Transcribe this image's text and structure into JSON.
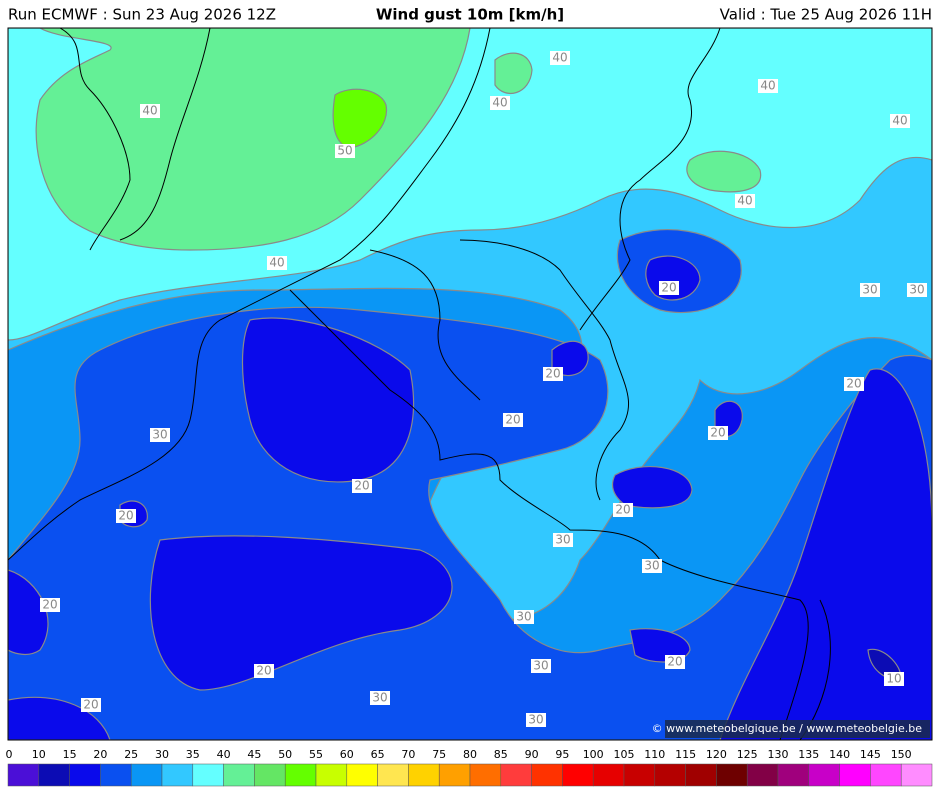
{
  "header": {
    "run": "Run ECMWF : Sun 23 Aug 2026 12Z",
    "title": "Wind gust 10m [km/h]",
    "valid": "Valid : Tue 25 Aug 2026 11H"
  },
  "map": {
    "contour_labels": [
      40,
      50,
      40,
      40,
      40,
      40,
      40,
      40,
      20,
      30,
      30,
      20,
      20,
      30,
      20,
      20,
      20,
      20,
      20,
      30,
      30,
      20,
      30,
      20,
      30,
      20,
      10,
      30,
      20,
      30
    ],
    "credit": "© www.meteobelgique.be / www.meteobelgie.be"
  },
  "colorbar": {
    "ticks": [
      0,
      10,
      15,
      20,
      25,
      30,
      35,
      40,
      45,
      50,
      55,
      60,
      65,
      70,
      75,
      80,
      85,
      90,
      95,
      100,
      105,
      110,
      115,
      120,
      125,
      130,
      135,
      140,
      145,
      150
    ],
    "colors": [
      "#4b0fd7",
      "#0c0cb4",
      "#0a0aeb",
      "#0a50f0",
      "#0a96f5",
      "#32c8ff",
      "#64ffff",
      "#64f096",
      "#64e664",
      "#64ff00",
      "#c8ff00",
      "#ffff00",
      "#ffe650",
      "#ffd200",
      "#ffa000",
      "#ff6e00",
      "#ff3c3c",
      "#ff3200",
      "#ff0000",
      "#e60000",
      "#c80000",
      "#b40000",
      "#a00000",
      "#6e0000",
      "#820046",
      "#a0007d",
      "#c800c8",
      "#ff00ff",
      "#ff46ff",
      "#ff8cff"
    ]
  }
}
